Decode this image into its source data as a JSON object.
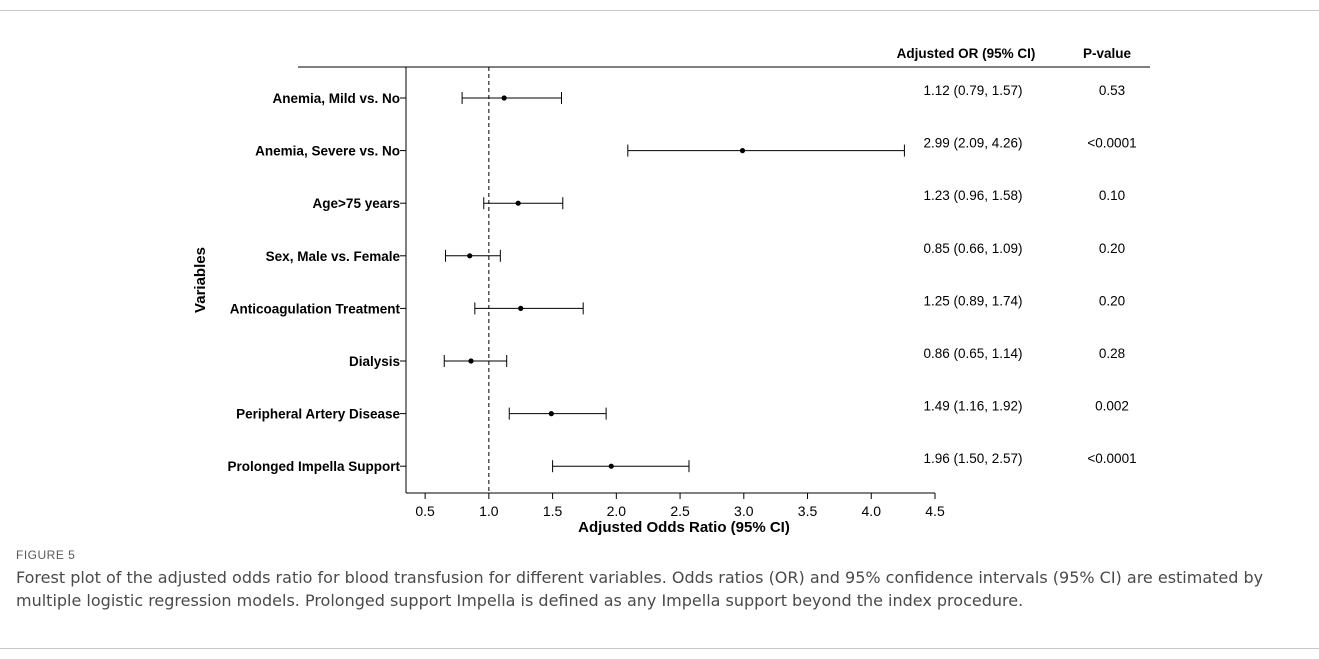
{
  "figure": {
    "label": "FIGURE 5",
    "caption": "Forest plot of the adjusted odds ratio for blood transfusion for different variables. Odds ratios (OR) and 95% confidence intervals (95% CI) are estimated by multiple logistic regression models. Prolonged support Impella is defined as any Impella support beyond the index procedure."
  },
  "chart_data": {
    "type": "forest",
    "xlabel": "Adjusted Odds Ratio (95% CI)",
    "ylabel": "Variables",
    "xlim": [
      0.35,
      4.5
    ],
    "xticks": [
      0.5,
      1.0,
      1.5,
      2.0,
      2.5,
      3.0,
      3.5,
      4.0,
      4.5
    ],
    "xtick_labels": [
      "0.5",
      "1.0",
      "1.5",
      "2.0",
      "2.5",
      "3.0",
      "3.5",
      "4.0",
      "4.5"
    ],
    "reference_line": 1.0,
    "column_headers": {
      "or": "Adjusted OR (95% CI)",
      "p": "P-value"
    },
    "rows": [
      {
        "label": "Anemia, Mild vs. No",
        "or": 1.12,
        "lo": 0.79,
        "hi": 1.57,
        "or_text": "1.12 (0.79, 1.57)",
        "p_text": "0.53"
      },
      {
        "label": "Anemia, Severe vs. No",
        "or": 2.99,
        "lo": 2.09,
        "hi": 4.26,
        "or_text": "2.99 (2.09, 4.26)",
        "p_text": "<0.0001"
      },
      {
        "label": "Age>75 years",
        "or": 1.23,
        "lo": 0.96,
        "hi": 1.58,
        "or_text": "1.23 (0.96, 1.58)",
        "p_text": "0.10"
      },
      {
        "label": "Sex, Male vs. Female",
        "or": 0.85,
        "lo": 0.66,
        "hi": 1.09,
        "or_text": "0.85 (0.66, 1.09)",
        "p_text": "0.20"
      },
      {
        "label": "Anticoagulation Treatment",
        "or": 1.25,
        "lo": 0.89,
        "hi": 1.74,
        "or_text": "1.25 (0.89, 1.74)",
        "p_text": "0.20"
      },
      {
        "label": "Dialysis",
        "or": 0.86,
        "lo": 0.65,
        "hi": 1.14,
        "or_text": "0.86 (0.65, 1.14)",
        "p_text": "0.28"
      },
      {
        "label": "Peripheral Artery Disease",
        "or": 1.49,
        "lo": 1.16,
        "hi": 1.92,
        "or_text": "1.49 (1.16, 1.92)",
        "p_text": "0.002"
      },
      {
        "label": "Prolonged Impella Support",
        "or": 1.96,
        "lo": 1.5,
        "hi": 2.57,
        "or_text": "1.96 (1.50, 2.57)",
        "p_text": "<0.0001"
      }
    ]
  }
}
